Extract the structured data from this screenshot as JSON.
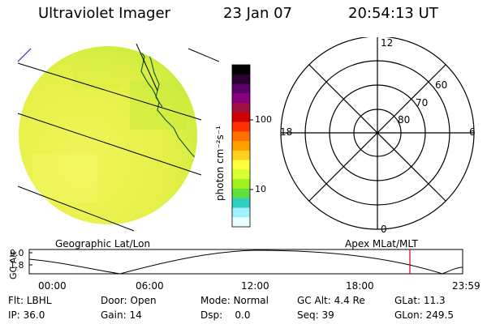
{
  "header": {
    "instrument": "Ultraviolet Imager",
    "date": "23 Jan 07",
    "time": "20:54:13 UT"
  },
  "colorbar": {
    "unit_label": "photon cm⁻²s⁻¹",
    "ticks": [
      "100",
      "10"
    ],
    "colors": [
      "#000000",
      "#2a0030",
      "#5a0068",
      "#8a0080",
      "#a01040",
      "#d00000",
      "#ff3000",
      "#ff7000",
      "#ffa000",
      "#ffd020",
      "#ffff40",
      "#d8ff30",
      "#a0f020",
      "#60e040",
      "#30d0c0",
      "#a0f0ff",
      "#e8ffff"
    ]
  },
  "geo_panel": {
    "label": "Geographic Lat/Lon",
    "disk_color": "#ecf24a"
  },
  "polar_panel": {
    "label": "Apex MLat/MLT",
    "mlt_labels": {
      "top": "12",
      "left": "18",
      "right": "6",
      "bottom": "0"
    },
    "lat_labels": [
      "60",
      "70",
      "80"
    ]
  },
  "alt_plot": {
    "ylabel": "GC Alt",
    "yticks": [
      "9.0",
      "1.8"
    ],
    "xticks": [
      "00:00",
      "06:00",
      "12:00",
      "18:00",
      "23:59"
    ],
    "marker_color": "#d00000"
  },
  "footer": {
    "row1": [
      {
        "key": "Flt:",
        "value": "LBHL"
      },
      {
        "key": "Door:",
        "value": "Open"
      },
      {
        "key": "Mode:",
        "value": "Normal"
      },
      {
        "key": "GC Alt:",
        "value": "4.4 Re"
      },
      {
        "key": "GLat:",
        "value": "11.3"
      }
    ],
    "row2": [
      {
        "key": "IP:",
        "value": "36.0"
      },
      {
        "key": "Gain:",
        "value": "14"
      },
      {
        "key": "Dsp:",
        "value": "0.0"
      },
      {
        "key": "Seq:",
        "value": "39"
      },
      {
        "key": "GLon:",
        "value": "249.5"
      }
    ]
  }
}
